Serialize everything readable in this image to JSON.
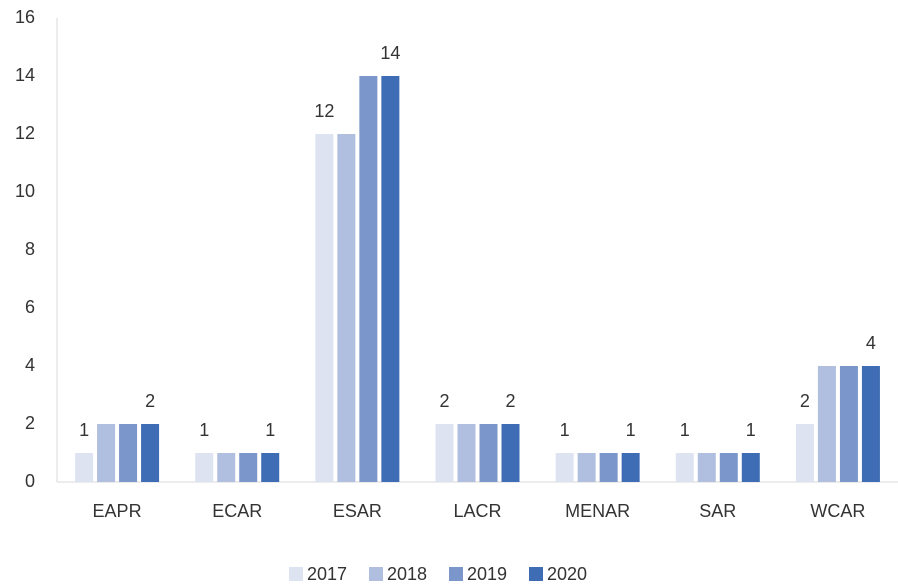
{
  "chart_data": {
    "type": "bar",
    "categories": [
      "EAPR",
      "ECAR",
      "ESAR",
      "LACR",
      "MENAR",
      "SAR",
      "WCAR"
    ],
    "series": [
      {
        "name": "2017",
        "color": "#dde3f1",
        "values": [
          1,
          1,
          12,
          2,
          1,
          1,
          2
        ],
        "show_labels": true
      },
      {
        "name": "2018",
        "color": "#b0bfe0",
        "values": [
          2,
          1,
          12,
          2,
          1,
          1,
          4
        ],
        "show_labels": false
      },
      {
        "name": "2019",
        "color": "#7b96cb",
        "values": [
          2,
          1,
          14,
          2,
          1,
          1,
          4
        ],
        "show_labels": false
      },
      {
        "name": "2020",
        "color": "#3e6cb5",
        "values": [
          2,
          1,
          14,
          2,
          1,
          1,
          4
        ],
        "show_labels": true
      }
    ],
    "ylim": [
      0,
      16
    ],
    "yticks": [
      0,
      2,
      4,
      6,
      8,
      10,
      12,
      14,
      16
    ],
    "grid": false,
    "legend": "bottom"
  }
}
